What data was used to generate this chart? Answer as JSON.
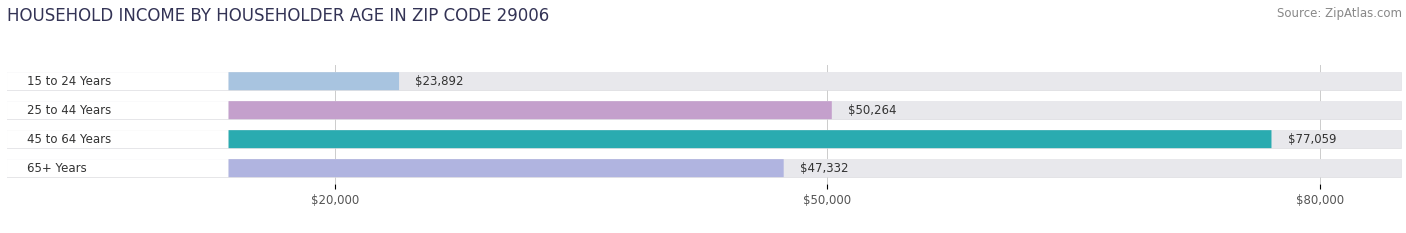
{
  "title": "HOUSEHOLD INCOME BY HOUSEHOLDER AGE IN ZIP CODE 29006",
  "source": "Source: ZipAtlas.com",
  "categories": [
    "15 to 24 Years",
    "25 to 44 Years",
    "45 to 64 Years",
    "65+ Years"
  ],
  "values": [
    23892,
    50264,
    77059,
    47332
  ],
  "labels": [
    "$23,892",
    "$50,264",
    "$77,059",
    "$47,332"
  ],
  "bar_colors": [
    "#a8c4e0",
    "#c4a0cc",
    "#2aabb0",
    "#b0b4e0"
  ],
  "background_color": "#ffffff",
  "bar_bg_color": "#e8e8ec",
  "bar_bg_border": "#d8d8dc",
  "xlim_max": 85000,
  "xticks": [
    20000,
    50000,
    80000
  ],
  "xticklabels": [
    "$20,000",
    "$50,000",
    "$80,000"
  ],
  "title_fontsize": 12,
  "source_fontsize": 8.5,
  "label_fontsize": 8.5,
  "figsize": [
    14.06,
    2.33
  ],
  "dpi": 100
}
